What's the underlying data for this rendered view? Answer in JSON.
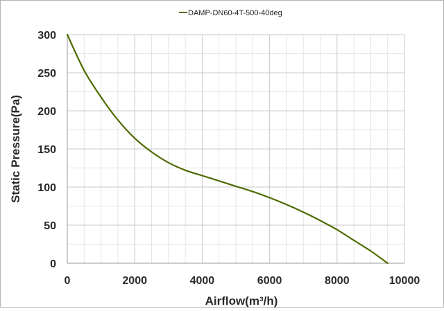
{
  "chart_data": {
    "type": "line",
    "title": "",
    "xlabel": "Airflow(m³/h)",
    "ylabel": "Static Pressure(Pa)",
    "xlim": [
      0,
      10000
    ],
    "ylim": [
      0,
      300
    ],
    "xticks": [
      0,
      2000,
      4000,
      6000,
      8000,
      10000
    ],
    "yticks": [
      0,
      50,
      100,
      150,
      200,
      250,
      300
    ],
    "x_tick_labels": [
      "0",
      "2000",
      "4000",
      "6000",
      "8000",
      "10000"
    ],
    "y_tick_labels": [
      "0",
      "50",
      "100",
      "150",
      "200",
      "250",
      "300"
    ],
    "grid": true,
    "legend_position": "top-center",
    "series": [
      {
        "name": "DAMP-DN60-4T-500-40deg",
        "color": "#4d6b00",
        "x": [
          0,
          500,
          1000,
          1500,
          2000,
          2500,
          3000,
          3500,
          4000,
          4500,
          5000,
          5500,
          6000,
          6500,
          7000,
          7500,
          8000,
          8500,
          9000,
          9500
        ],
        "y": [
          300,
          253,
          218,
          188,
          164,
          146,
          132,
          122,
          115,
          108,
          101,
          94,
          86,
          77,
          67,
          56,
          44,
          30,
          16,
          0
        ]
      }
    ]
  }
}
